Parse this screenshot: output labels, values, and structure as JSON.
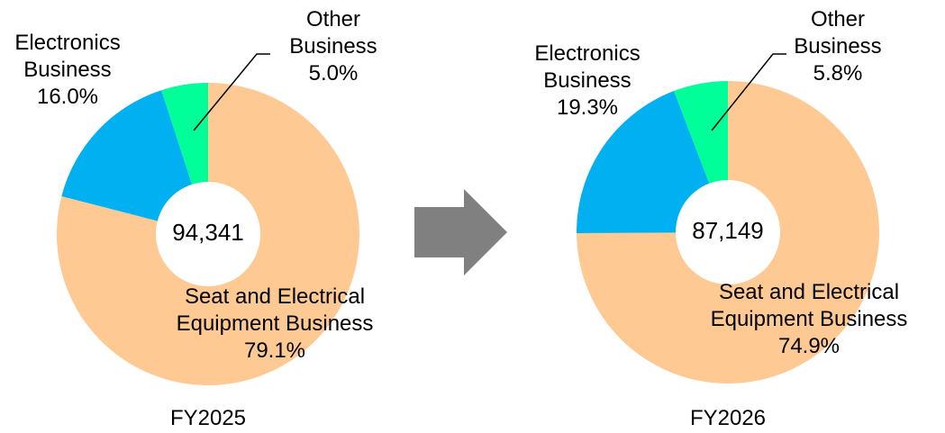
{
  "chart_data": [
    {
      "type": "pie",
      "donut": true,
      "categories": [
        "Seat and Electrical Equipment Business",
        "Electronics Business",
        "Other Business"
      ],
      "values": [
        79.1,
        16.0,
        5.0
      ],
      "value_labels": [
        "79.1%",
        "16.0%",
        "5.0%"
      ],
      "colors": [
        "#ffc994",
        "#00b0f0",
        "#00ff99"
      ],
      "center_label": "94,341",
      "caption": "FY2025"
    },
    {
      "type": "pie",
      "donut": true,
      "categories": [
        "Seat and Electrical Equipment Business",
        "Electronics Business",
        "Other Business"
      ],
      "values": [
        74.9,
        19.3,
        5.8
      ],
      "value_labels": [
        "74.9%",
        "19.3%",
        "5.8%"
      ],
      "colors": [
        "#ffc994",
        "#00b0f0",
        "#00ff99"
      ],
      "center_label": "87,149",
      "caption": "FY2026"
    }
  ]
}
